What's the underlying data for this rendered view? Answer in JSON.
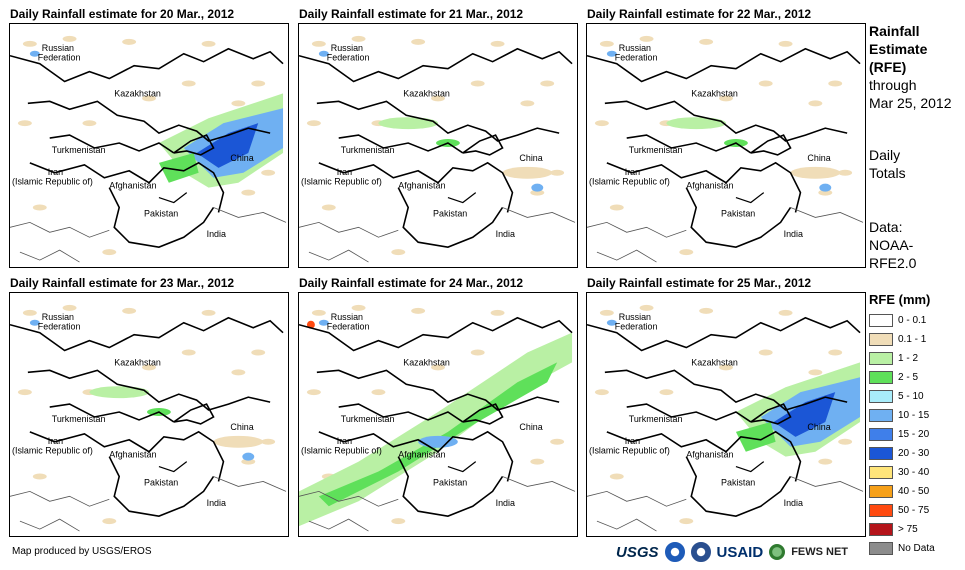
{
  "panels": [
    {
      "title": "Daily Rainfall estimate for 20 Mar., 2012",
      "rain": "heavy-east"
    },
    {
      "title": "Daily Rainfall estimate for 21 Mar., 2012",
      "rain": "light"
    },
    {
      "title": "Daily Rainfall estimate for 22 Mar., 2012",
      "rain": "light"
    },
    {
      "title": "Daily Rainfall estimate for 23 Mar., 2012",
      "rain": "light"
    },
    {
      "title": "Daily Rainfall estimate for 24 Mar., 2012",
      "rain": "band"
    },
    {
      "title": "Daily Rainfall estimate for 25 Mar., 2012",
      "rain": "heavy-east"
    }
  ],
  "labels": {
    "russia1": "Russian",
    "russia2": "Federation",
    "kazakhstan": "Kazakhstan",
    "turkmenistan": "Turkmenistan",
    "china": "China",
    "iran1": "Iran",
    "iran2": "(Islamic Republic of)",
    "afghanistan": "Afghanistan",
    "pakistan": "Pakistan",
    "india": "India"
  },
  "side": {
    "line1": "Rainfall",
    "line2": "Estimate",
    "line3": "(RFE)",
    "line4": "through",
    "line5": "Mar 25, 2012",
    "line6": "Daily",
    "line7": "Totals",
    "line8": "Data:",
    "line9": "NOAA-",
    "line10": "RFE2.0"
  },
  "legend": {
    "title": "RFE (mm)",
    "items": [
      {
        "label": "0 - 0.1",
        "color": "#ffffff"
      },
      {
        "label": "0.1 - 1",
        "color": "#f0ddb8"
      },
      {
        "label": "1 - 2",
        "color": "#b9f0a4"
      },
      {
        "label": "2 - 5",
        "color": "#5fe05a"
      },
      {
        "label": "5 - 10",
        "color": "#a8ecfa"
      },
      {
        "label": "10 - 15",
        "color": "#6fb0f2"
      },
      {
        "label": "15 - 20",
        "color": "#3f7fea"
      },
      {
        "label": "20 - 30",
        "color": "#1b56d6"
      },
      {
        "label": "30 - 40",
        "color": "#ffe57a"
      },
      {
        "label": "40 - 50",
        "color": "#f6a019"
      },
      {
        "label": "50 - 75",
        "color": "#ff4a10"
      },
      {
        "label": "> 75",
        "color": "#b4141a"
      },
      {
        "label": "No Data",
        "color": "#8c8c8c"
      }
    ]
  },
  "credit": "Map produced by USGS/EROS",
  "logos": {
    "usgs": "USGS",
    "usaid": "USAID",
    "fews": "FEWS NET"
  }
}
